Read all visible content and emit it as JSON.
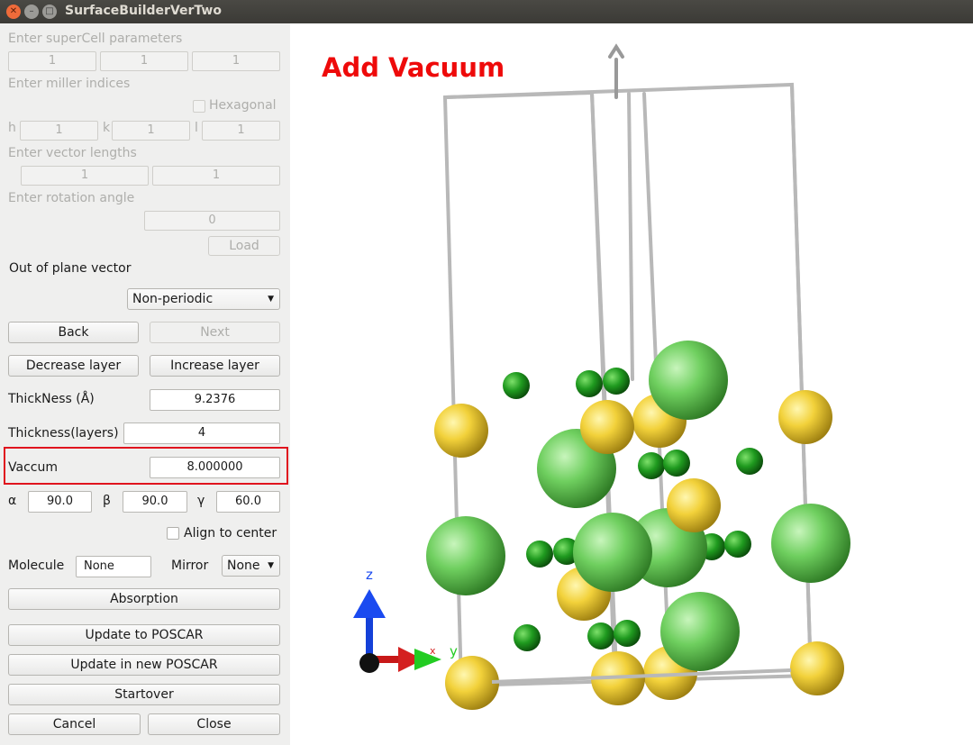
{
  "window": {
    "title": "SurfaceBuilderVerTwo"
  },
  "supercell": {
    "label": "Enter superCell parameters",
    "values": [
      "1",
      "1",
      "1"
    ]
  },
  "miller": {
    "label": "Enter miller indices",
    "hexagonal_label": "Hexagonal",
    "h_label": "h",
    "k_label": "k",
    "l_label": "l",
    "h": "1",
    "k": "1",
    "l": "1"
  },
  "vector_lengths": {
    "label": "Enter vector lengths",
    "values": [
      "1",
      "1"
    ]
  },
  "rotation": {
    "label": "Enter rotation angle",
    "value": "0"
  },
  "load_label": "Load",
  "out_of_plane": {
    "label": "Out of plane vector",
    "selected": "Non-periodic"
  },
  "nav": {
    "back": "Back",
    "next": "Next"
  },
  "layers": {
    "decrease": "Decrease layer",
    "increase": "Increase layer"
  },
  "thickness": {
    "label": "ThickNess (Å)",
    "value": "9.2376"
  },
  "thickness_layers": {
    "label": "Thickness(layers)",
    "value": "4"
  },
  "vacuum": {
    "label": "Vaccum",
    "value": "8.000000",
    "highlight_color": "#e0141e"
  },
  "angles": {
    "alpha_label": "α",
    "alpha": "90.0",
    "beta_label": "β",
    "beta": "90.0",
    "gamma_label": "γ",
    "gamma": "60.0"
  },
  "align_center_label": "Align to center",
  "molecule": {
    "label": "Molecule",
    "value": "None"
  },
  "mirror": {
    "label": "Mirror",
    "selected": "None"
  },
  "actions": {
    "absorption": "Absorption",
    "update_poscar": "Update to POSCAR",
    "update_new_poscar": "Update in new POSCAR",
    "startover": "Startover",
    "cancel": "Cancel",
    "close": "Close"
  },
  "viewer": {
    "overlay_title": "Add Vacuum",
    "overlay_color": "#ee0a0a",
    "axes": {
      "z": "z",
      "y": "y",
      "x": "x"
    },
    "colors": {
      "yellow_atom": "#f2d13a",
      "green_large": "#6fcf5f",
      "green_small": "#1f9a1f",
      "cell_line": "#b8b8b8"
    }
  }
}
